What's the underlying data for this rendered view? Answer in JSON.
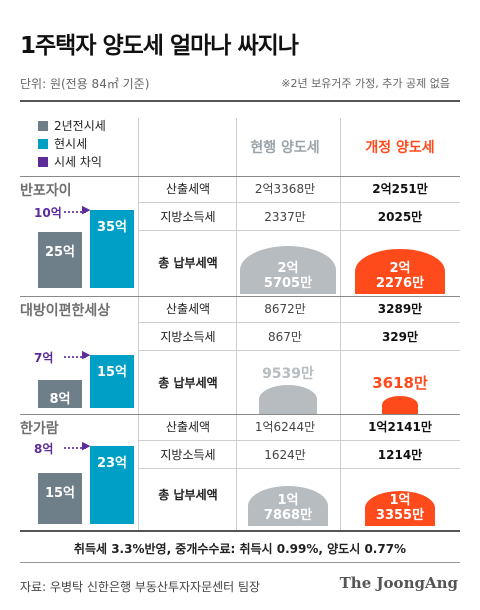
{
  "title": "1주택자 양도세 얼마나 싸지나",
  "unit_note": "단위: 원(전용 84㎡ 기준)",
  "assumption_note": "※2년 보유거주 가정, 추가 공제 없음",
  "legend": [
    {
      "label": "2년전시세",
      "color": "#6f7f8a"
    },
    {
      "label": "현시세",
      "color": "#00a0c6"
    },
    {
      "label": "시세 차익",
      "color": "#5b2c9a"
    }
  ],
  "columns": {
    "current": "현행 양도세",
    "revised": "개정 양도세"
  },
  "colors": {
    "current_dome": "#b7bcc0",
    "revised_dome": "#ff4a1c",
    "revised_header": "#ff4a1c",
    "current_header": "#9aa3a8"
  },
  "chart_data": {
    "type": "table",
    "unit": "억원",
    "complexes": [
      {
        "name": "반포자이",
        "price_2y_ago": 25,
        "price_now": 35,
        "gain": 10,
        "price_2y_ago_label": "25억",
        "price_now_label": "35억",
        "gain_label": "10억",
        "rows": [
          {
            "label": "산출세액",
            "current": "2억3368만",
            "revised": "2억251만"
          },
          {
            "label": "지방소득세",
            "current": "2337만",
            "revised": "2025만"
          }
        ],
        "total_label": "총 납부세액",
        "total_current": "2억\n5705만",
        "total_revised": "2억\n2276만",
        "total_current_value": 25705,
        "total_revised_value": 22276
      },
      {
        "name": "대방이편한세상",
        "price_2y_ago": 8,
        "price_now": 15,
        "gain": 7,
        "price_2y_ago_label": "8억",
        "price_now_label": "15억",
        "gain_label": "7억",
        "rows": [
          {
            "label": "산출세액",
            "current": "8672만",
            "revised": "3289만"
          },
          {
            "label": "지방소득세",
            "current": "867만",
            "revised": "329만"
          }
        ],
        "total_label": "총 납부세액",
        "total_current": "9539만",
        "total_revised": "3618만",
        "total_current_value": 9539,
        "total_revised_value": 3618
      },
      {
        "name": "한가람",
        "price_2y_ago": 15,
        "price_now": 23,
        "gain": 8,
        "price_2y_ago_label": "15억",
        "price_now_label": "23억",
        "gain_label": "8억",
        "rows": [
          {
            "label": "산출세액",
            "current": "1억6244만",
            "revised": "1억2141만"
          },
          {
            "label": "지방소득세",
            "current": "1624만",
            "revised": "1214만"
          }
        ],
        "total_label": "총 납부세액",
        "total_current": "1억\n7868만",
        "total_revised": "1억\n3355만",
        "total_current_value": 17868,
        "total_revised_value": 13355
      }
    ]
  },
  "footnote": "취득세 3.3%반영, 중개수수료: 취득시 0.99%, 양도시 0.77%",
  "source": "자료: 우병탁 신한은행 부동산투자자문센터 팀장",
  "brand": "The JoongAng"
}
